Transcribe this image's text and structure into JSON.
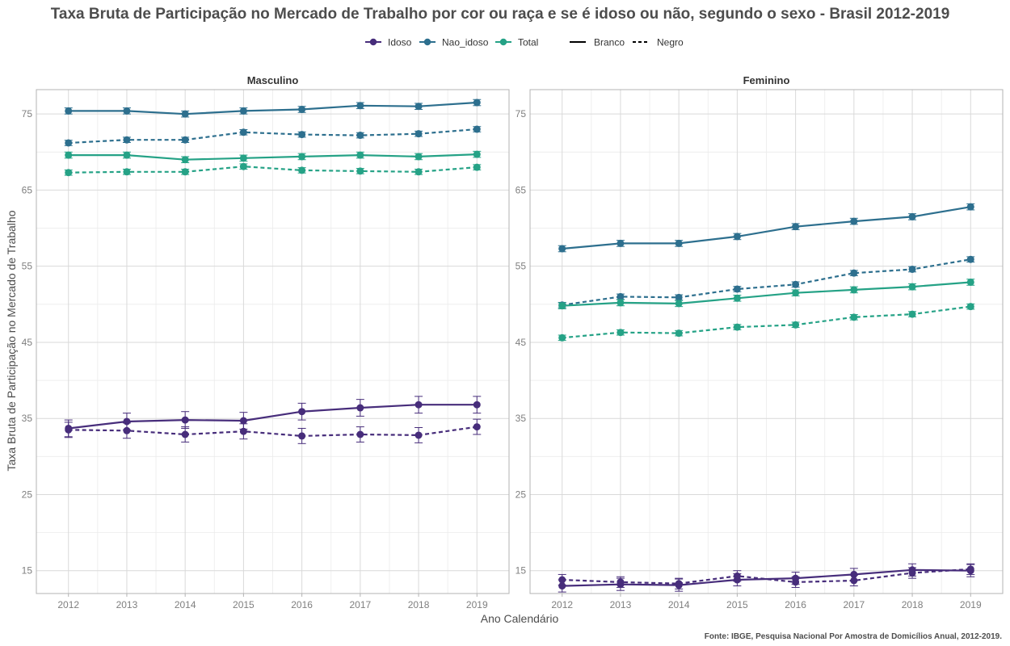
{
  "chart_data": {
    "type": "line",
    "title": "Taxa Bruta de Participação no Mercado de Trabalho por cor ou raça e se é idoso ou não, segundo o sexo - Brasil 2012-2019",
    "xlabel": "Ano Calendário",
    "ylabel": "Taxa Bruta de Participação no Mercado de Trabalho",
    "caption": "Fonte: IBGE, Pesquisa Nacional Por Amostra de Domicílios Anual, 2012-2019.",
    "x": [
      2012,
      2013,
      2014,
      2015,
      2016,
      2017,
      2018,
      2019
    ],
    "x_tick_labels": [
      "2012",
      "2013",
      "2014",
      "2015",
      "2016",
      "2017",
      "2018",
      "2019"
    ],
    "y_ticks": [
      15,
      25,
      35,
      45,
      55,
      65,
      75
    ],
    "y_tick_labels": [
      "15",
      "25",
      "35",
      "45",
      "55",
      "65",
      "75"
    ],
    "ylim": [
      12,
      78.2
    ],
    "grid": true,
    "legend_position": "top",
    "legend": {
      "color": [
        {
          "label": "Idoso",
          "key": "Idoso",
          "color": "#440154"
        },
        {
          "label": "Nao_idoso",
          "key": "Nao_idoso",
          "color": "#31688e"
        },
        {
          "label": "Total",
          "key": "Total",
          "color": "#21a086"
        }
      ],
      "linetype": [
        {
          "label": "Branco",
          "key": "Branco",
          "dash": "solid"
        },
        {
          "label": "Negro",
          "key": "Negro",
          "dash": "dashed"
        }
      ]
    },
    "colors": {
      "Idoso": "#472d7b",
      "Nao_idoso": "#2d6f8e",
      "Total": "#25a286"
    },
    "panels": [
      {
        "label": "Masculino",
        "series": [
          {
            "group": "Nao_idoso",
            "race": "Branco",
            "values": [
              75.4,
              75.4,
              75.0,
              75.4,
              75.6,
              76.1,
              76.0,
              76.5
            ],
            "err": 0.4
          },
          {
            "group": "Nao_idoso",
            "race": "Negro",
            "values": [
              71.2,
              71.6,
              71.6,
              72.6,
              72.3,
              72.2,
              72.4,
              73.0
            ],
            "err": 0.35
          },
          {
            "group": "Total",
            "race": "Branco",
            "values": [
              69.6,
              69.6,
              69.0,
              69.2,
              69.4,
              69.6,
              69.4,
              69.7
            ],
            "err": 0.4
          },
          {
            "group": "Total",
            "race": "Negro",
            "values": [
              67.3,
              67.4,
              67.4,
              68.1,
              67.6,
              67.5,
              67.4,
              68.0
            ],
            "err": 0.35
          },
          {
            "group": "Idoso",
            "race": "Branco",
            "values": [
              33.7,
              34.6,
              34.8,
              34.7,
              35.9,
              36.4,
              36.8,
              36.8
            ],
            "err": 1.1
          },
          {
            "group": "Idoso",
            "race": "Negro",
            "values": [
              33.5,
              33.4,
              32.9,
              33.3,
              32.7,
              32.9,
              32.8,
              33.9
            ],
            "err": 1.0
          }
        ]
      },
      {
        "label": "Feminino",
        "series": [
          {
            "group": "Nao_idoso",
            "race": "Branco",
            "values": [
              57.3,
              58.0,
              58.0,
              58.9,
              60.2,
              60.9,
              61.5,
              62.8
            ],
            "err": 0.4
          },
          {
            "group": "Nao_idoso",
            "race": "Negro",
            "values": [
              49.9,
              51.0,
              50.9,
              52.0,
              52.6,
              54.1,
              54.6,
              55.9
            ],
            "err": 0.35
          },
          {
            "group": "Total",
            "race": "Branco",
            "values": [
              49.8,
              50.2,
              50.1,
              50.8,
              51.5,
              51.9,
              52.3,
              52.9
            ],
            "err": 0.4
          },
          {
            "group": "Total",
            "race": "Negro",
            "values": [
              45.6,
              46.3,
              46.2,
              47.0,
              47.3,
              48.3,
              48.7,
              49.7
            ],
            "err": 0.35
          },
          {
            "group": "Idoso",
            "race": "Branco",
            "values": [
              13.0,
              13.2,
              13.1,
              13.8,
              14.0,
              14.5,
              15.1,
              15.0
            ],
            "err": 0.8
          },
          {
            "group": "Idoso",
            "race": "Negro",
            "values": [
              13.8,
              13.5,
              13.3,
              14.3,
              13.5,
              13.7,
              14.7,
              15.2
            ],
            "err": 0.7
          }
        ]
      }
    ]
  }
}
